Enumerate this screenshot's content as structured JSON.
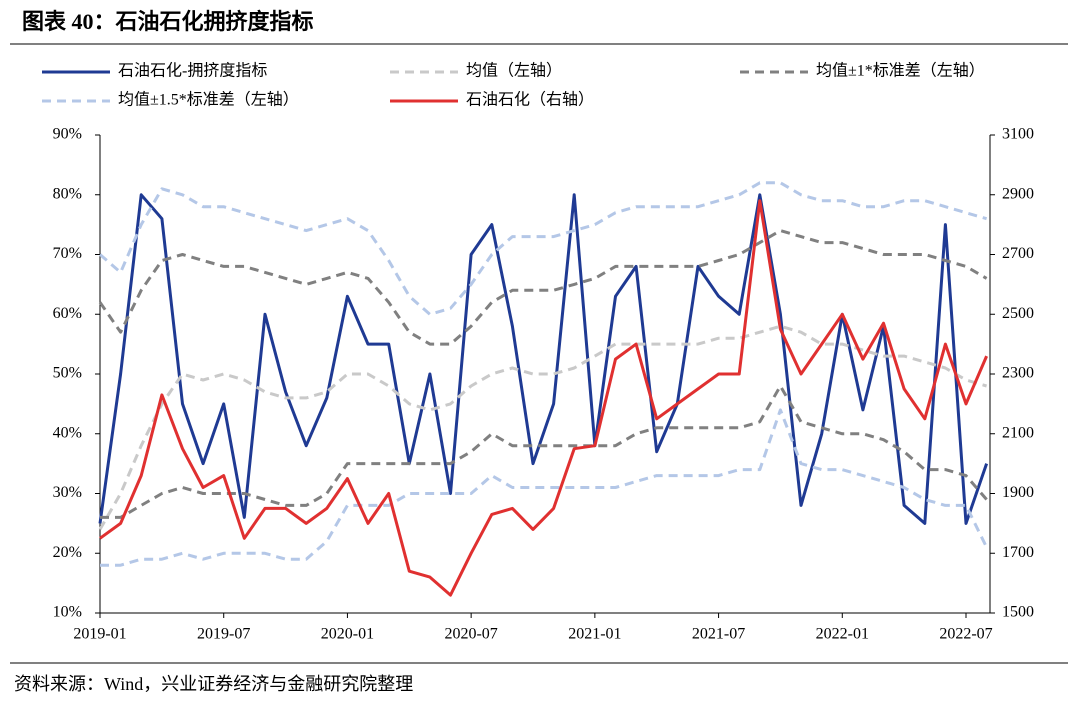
{
  "chart_data": {
    "type": "line",
    "title": "图表 40：石油石化拥挤度指标",
    "source": "资料来源：Wind，兴业证券经济与金融研究院整理",
    "categories": [
      "2019-01",
      null,
      null,
      null,
      null,
      null,
      "2019-07",
      null,
      null,
      null,
      null,
      null,
      "2020-01",
      null,
      null,
      null,
      null,
      null,
      "2020-07",
      null,
      null,
      null,
      null,
      null,
      "2021-01",
      null,
      null,
      null,
      null,
      null,
      "2021-07",
      null,
      null,
      null,
      null,
      null,
      "2022-01",
      null,
      null,
      null,
      null,
      null,
      "2022-07",
      null
    ],
    "ylim": [
      10,
      90
    ],
    "yticks": [
      {
        "value": 10,
        "label": "10%"
      },
      {
        "value": 20,
        "label": "20%"
      },
      {
        "value": 30,
        "label": "30%"
      },
      {
        "value": 40,
        "label": "40%"
      },
      {
        "value": 50,
        "label": "50%"
      },
      {
        "value": 60,
        "label": "60%"
      },
      {
        "value": 70,
        "label": "70%"
      },
      {
        "value": 80,
        "label": "80%"
      },
      {
        "value": 90,
        "label": "90%"
      }
    ],
    "y2lim": [
      1500,
      3100
    ],
    "y2ticks": [
      1500,
      1700,
      1900,
      2100,
      2300,
      2500,
      2700,
      2900,
      3100
    ],
    "series": [
      {
        "name": "石油石化-拥挤度指标",
        "color": "#1f3a93",
        "dash": false,
        "values": [
          25,
          50,
          80,
          76,
          45,
          35,
          45,
          26,
          60,
          47,
          38,
          46,
          63,
          55,
          55,
          35,
          50,
          30,
          70,
          75,
          58,
          35,
          45,
          80,
          38,
          63,
          68,
          37,
          45,
          68,
          63,
          60,
          80,
          60,
          28,
          40,
          60,
          44,
          58,
          28,
          25,
          75,
          25,
          35
        ]
      },
      {
        "name": "均值（左轴）",
        "color": "#c9c9c9",
        "dash": true,
        "values": [
          24,
          30,
          38,
          45,
          50,
          49,
          50,
          49,
          47,
          46,
          46,
          47,
          50,
          50,
          48,
          45,
          44,
          45,
          48,
          50,
          51,
          50,
          50,
          51,
          53,
          55,
          55,
          55,
          55,
          55,
          56,
          56,
          57,
          58,
          57,
          55,
          55,
          54,
          53,
          53,
          52,
          51,
          49,
          48
        ]
      },
      {
        "name": "均值±1*标准差（左轴）",
        "color": "#808080",
        "dash": true,
        "values": [
          62,
          57,
          64,
          69,
          70,
          69,
          68,
          68,
          67,
          66,
          65,
          66,
          67,
          66,
          62,
          57,
          55,
          55,
          58,
          62,
          64,
          64,
          64,
          65,
          66,
          68,
          68,
          68,
          68,
          68,
          69,
          70,
          72,
          74,
          73,
          72,
          72,
          71,
          70,
          70,
          70,
          69,
          68,
          66
        ]
      },
      {
        "values": [
          26,
          26,
          28,
          30,
          31,
          30,
          30,
          30,
          29,
          28,
          28,
          30,
          35,
          35,
          35,
          35,
          35,
          35,
          37,
          40,
          38,
          38,
          38,
          38,
          38,
          38,
          40,
          41,
          41,
          41,
          41,
          41,
          42,
          48,
          42,
          41,
          40,
          40,
          39,
          37,
          34,
          34,
          33,
          29
        ],
        "color": "#808080",
        "dash": true
      },
      {
        "name": "均值±1.5*标准差（左轴）",
        "color": "#b4c7e7",
        "dash": true,
        "values": [
          70,
          67,
          75,
          81,
          80,
          78,
          78,
          77,
          76,
          75,
          74,
          75,
          76,
          74,
          69,
          63,
          60,
          61,
          65,
          70,
          73,
          73,
          73,
          74,
          75,
          77,
          78,
          78,
          78,
          78,
          79,
          80,
          82,
          82,
          80,
          79,
          79,
          78,
          78,
          79,
          79,
          78,
          77,
          76
        ]
      },
      {
        "values": [
          18,
          18,
          19,
          19,
          20,
          19,
          20,
          20,
          20,
          19,
          19,
          22,
          28,
          28,
          28,
          30,
          30,
          30,
          30,
          33,
          31,
          31,
          31,
          31,
          31,
          31,
          32,
          33,
          33,
          33,
          33,
          34,
          34,
          44,
          35,
          34,
          34,
          33,
          32,
          31,
          29,
          28,
          28,
          21
        ],
        "color": "#b4c7e7",
        "dash": true
      },
      {
        "name": "石油石化（右轴）",
        "color": "#e03030",
        "dash": false,
        "axis": "y2",
        "values": [
          1750,
          1800,
          1960,
          2230,
          2050,
          1920,
          1960,
          1750,
          1850,
          1850,
          1800,
          1850,
          1950,
          1800,
          1900,
          1640,
          1620,
          1560,
          1700,
          1830,
          1850,
          1780,
          1850,
          2050,
          2060,
          2350,
          2400,
          2150,
          2200,
          2250,
          2300,
          2300,
          2880,
          2450,
          2300,
          2400,
          2500,
          2350,
          2470,
          2250,
          2150,
          2400,
          2200,
          2360
        ]
      }
    ]
  }
}
